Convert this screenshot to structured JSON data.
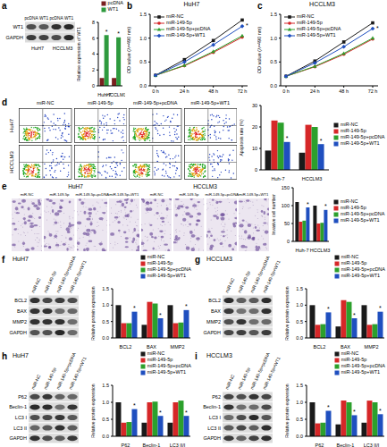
{
  "chart_data": [
    {
      "type": "bar",
      "categories": [
        "Huh-7",
        "HCCLM3"
      ],
      "ylabel": "Relative expression of WT1",
      "ylim": [
        0,
        8
      ],
      "yticks": [
        0,
        2,
        4,
        6,
        8
      ],
      "legend": "upper right",
      "annotation": "*",
      "series": [
        {
          "name": "pcDNA",
          "color": "#7a1f1f",
          "values": [
            1.0,
            1.0
          ]
        },
        {
          "name": "WT1",
          "color": "#2e9a3e",
          "values": [
            6.4,
            6.1
          ]
        }
      ]
    },
    {
      "type": "line",
      "panel": "b",
      "title": "HuH7",
      "categories": [
        "0 h",
        "24 h",
        "48 h",
        "72 h"
      ],
      "ylabel": "OD value (λ=490 nm)",
      "ylim": [
        0,
        1.5
      ],
      "yticks": [
        {
          "value": 0,
          "label": "0.0"
        },
        0.5,
        {
          "value": 1,
          "label": "1.0"
        },
        1.5
      ],
      "legend": "upper left",
      "annotation": "*",
      "series": [
        {
          "name": "miR-NC",
          "color": "#1a1a1a",
          "marker": "square",
          "values": [
            0.22,
            0.55,
            0.95,
            1.38
          ]
        },
        {
          "name": "miR-149-5p",
          "color": "#d62728",
          "marker": "circle",
          "values": [
            0.22,
            0.42,
            0.7,
            1.02
          ]
        },
        {
          "name": "miR-149-5p+pcDNA",
          "color": "#2ca02c",
          "marker": "triangle",
          "values": [
            0.22,
            0.43,
            0.72,
            1.05
          ]
        },
        {
          "name": "miR-149-5p+WT1",
          "color": "#1f4fbf",
          "marker": "diamond",
          "values": [
            0.22,
            0.5,
            0.86,
            1.25
          ]
        }
      ]
    },
    {
      "type": "line",
      "panel": "c",
      "title": "HCCLM3",
      "categories": [
        "0 h",
        "24 h",
        "48 h",
        "72 h"
      ],
      "ylabel": "OD value (λ=490 nm)",
      "ylim": [
        0,
        1.5
      ],
      "yticks": [
        {
          "value": 0,
          "label": "0.0"
        },
        0.5,
        {
          "value": 1,
          "label": "1.0"
        },
        1.5
      ],
      "legend": "upper left",
      "annotation": "*",
      "series": [
        {
          "name": "miR-NC",
          "color": "#1a1a1a",
          "marker": "square",
          "values": [
            0.2,
            0.52,
            0.92,
            1.32
          ]
        },
        {
          "name": "miR-149-5p",
          "color": "#d62728",
          "marker": "circle",
          "values": [
            0.2,
            0.4,
            0.66,
            0.98
          ]
        },
        {
          "name": "miR-149-5p+pcDNA",
          "color": "#2ca02c",
          "marker": "triangle",
          "values": [
            0.2,
            0.41,
            0.68,
            1.0
          ]
        },
        {
          "name": "miR-149-5p+WT1",
          "color": "#1f4fbf",
          "marker": "diamond",
          "values": [
            0.2,
            0.48,
            0.82,
            1.2
          ]
        }
      ]
    },
    {
      "type": "bar",
      "categories": [
        "Huh-7",
        "HCCLM3"
      ],
      "ylabel": "Apoptosis rate (%)",
      "ylim": [
        0,
        30
      ],
      "yticks": [
        0,
        10,
        20,
        30
      ],
      "legend": "right",
      "annotation": "*",
      "series": [
        {
          "name": "miR-NC",
          "color": "#1a1a1a",
          "values": [
            9,
            8
          ]
        },
        {
          "name": "miR-149-5p",
          "color": "#d62728",
          "values": [
            23,
            21
          ]
        },
        {
          "name": "miR-149-5p+pcDNA",
          "color": "#2ca02c",
          "values": [
            22,
            20
          ]
        },
        {
          "name": "miR-149-5p+WT1",
          "color": "#1f4fbf",
          "values": [
            13,
            12
          ]
        }
      ]
    },
    {
      "type": "bar",
      "categories": [
        "Huh-7",
        "HCCLM3"
      ],
      "ylabel": "Invasive cell number",
      "ylim": [
        0,
        150
      ],
      "yticks": [
        0,
        50,
        100,
        150
      ],
      "legend": "right",
      "annotation": "*",
      "series": [
        {
          "name": "miR-NC",
          "color": "#1a1a1a",
          "values": [
            110,
            100
          ]
        },
        {
          "name": "miR-149-5p",
          "color": "#d62728",
          "values": [
            55,
            50
          ]
        },
        {
          "name": "miR-149-5p+pcDNA",
          "color": "#2ca02c",
          "values": [
            58,
            52
          ]
        },
        {
          "name": "miR-149-5p+WT1",
          "color": "#1f4fbf",
          "values": [
            95,
            88
          ]
        }
      ]
    },
    {
      "type": "bar",
      "categories": [
        "BCL2",
        "BAX",
        "MMP2"
      ],
      "ylabel": "Relative protein expression",
      "ylim": [
        0,
        1.5
      ],
      "yticks": [
        {
          "value": 0,
          "label": "0.0"
        },
        0.5,
        {
          "value": 1,
          "label": "1.0"
        },
        1.5
      ],
      "legend": "upper right",
      "annotation": "*",
      "series": [
        {
          "name": "miR-NC",
          "color": "#1a1a1a",
          "values": [
            1.0,
            0.4,
            1.0
          ]
        },
        {
          "name": "miR-149-5p",
          "color": "#d62728",
          "values": [
            0.45,
            1.1,
            0.45
          ]
        },
        {
          "name": "miR-149-5p+pcDNA",
          "color": "#2ca02c",
          "values": [
            0.45,
            1.05,
            0.47
          ]
        },
        {
          "name": "miR-149-5p+WT1",
          "color": "#1f4fbf",
          "values": [
            0.8,
            0.6,
            0.85
          ]
        }
      ]
    },
    {
      "type": "bar",
      "categories": [
        "BCL2",
        "BAX",
        "MMP2"
      ],
      "ylabel": "Relative protein expression",
      "ylim": [
        0,
        1.5
      ],
      "yticks": [
        {
          "value": 0,
          "label": "0.0"
        },
        0.5,
        {
          "value": 1,
          "label": "1.0"
        },
        1.5
      ],
      "legend": "upper right",
      "annotation": "*",
      "series": [
        {
          "name": "miR-NC",
          "color": "#1a1a1a",
          "values": [
            1.0,
            0.35,
            1.0
          ]
        },
        {
          "name": "miR-149-5p",
          "color": "#d62728",
          "values": [
            0.4,
            1.15,
            0.4
          ]
        },
        {
          "name": "miR-149-5p+pcDNA",
          "color": "#2ca02c",
          "values": [
            0.42,
            1.1,
            0.42
          ]
        },
        {
          "name": "miR-149-5p+WT1",
          "color": "#1f4fbf",
          "values": [
            0.78,
            0.6,
            0.8
          ]
        }
      ]
    },
    {
      "type": "bar",
      "categories": [
        "P62",
        "Beclin-1",
        "LC3 II/I"
      ],
      "ylabel": "Relative protein expression",
      "ylim": [
        0,
        1.5
      ],
      "yticks": [
        {
          "value": 0,
          "label": "0.0"
        },
        0.5,
        {
          "value": 1,
          "label": "1.0"
        },
        1.5
      ],
      "legend": "upper right",
      "annotation": "*",
      "series": [
        {
          "name": "miR-NC",
          "color": "#1a1a1a",
          "values": [
            1.0,
            0.4,
            0.4
          ]
        },
        {
          "name": "miR-149-5p",
          "color": "#d62728",
          "values": [
            0.4,
            1.0,
            1.0
          ]
        },
        {
          "name": "miR-149-5p+pcDNA",
          "color": "#2ca02c",
          "values": [
            0.42,
            1.02,
            1.05
          ]
        },
        {
          "name": "miR-149-5p+WT1",
          "color": "#1f4fbf",
          "values": [
            0.8,
            0.6,
            0.6
          ]
        }
      ]
    },
    {
      "type": "bar",
      "categories": [
        "P62",
        "Beclin-1",
        "LC3 II/I"
      ],
      "ylabel": "Relative protein expression",
      "ylim": [
        0,
        1.5
      ],
      "yticks": [
        {
          "value": 0,
          "label": "0.0"
        },
        0.5,
        {
          "value": 1,
          "label": "1.0"
        },
        1.5
      ],
      "legend": "upper right",
      "annotation": "*",
      "series": [
        {
          "name": "miR-NC",
          "color": "#1a1a1a",
          "values": [
            1.0,
            0.35,
            0.4
          ]
        },
        {
          "name": "miR-149-5p",
          "color": "#d62728",
          "values": [
            0.38,
            1.05,
            1.05
          ]
        },
        {
          "name": "miR-149-5p+pcDNA",
          "color": "#2ca02c",
          "values": [
            0.4,
            1.0,
            1.0
          ]
        },
        {
          "name": "miR-149-5p+WT1",
          "color": "#1f4fbf",
          "values": [
            0.75,
            0.62,
            0.65
          ]
        }
      ]
    }
  ],
  "blots": [
    {
      "panel": "a",
      "groups": [
        "HuH7",
        "HCCLM3"
      ],
      "columns": [
        "pcDNA",
        "WT1"
      ],
      "rows": [
        "WT1",
        "GAPDH"
      ]
    },
    {
      "panel": "f",
      "title": "HuH7",
      "columns": [
        "miR-NC",
        "miR-149-5p",
        "miR-149-5p+pcDNA",
        "miR-149-5p+WT1"
      ],
      "rows": [
        "BCL2",
        "BAX",
        "MMP2",
        "GAPDH"
      ]
    },
    {
      "panel": "g",
      "title": "HCCLM3",
      "columns": [
        "miR-NC",
        "miR-149-5p",
        "miR-149-5p+pcDNA",
        "miR-149-5p+WT1"
      ],
      "rows": [
        "BCL2",
        "BAX",
        "MMP2",
        "GAPDH"
      ]
    },
    {
      "panel": "h",
      "title": "HuH7",
      "columns": [
        "miR-NC",
        "miR-149-5p",
        "miR-149-5p+pcDNA",
        "miR-149-5p+WT1"
      ],
      "rows": [
        "P62",
        "Beclin-1",
        "LC3 I",
        "LC3 II",
        "GAPDH"
      ]
    },
    {
      "panel": "i",
      "title": "HCCLM3",
      "columns": [
        "miR-NC",
        "miR-149-5p",
        "miR-149-5p+pcDNA",
        "miR-149-5p+WT1"
      ],
      "rows": [
        "P62",
        "Beclin-1",
        "LC3 I",
        "LC3 II",
        "GAPDH"
      ]
    }
  ],
  "flow": {
    "panel": "d",
    "rows": [
      "HuH7",
      "HCCLM3"
    ],
    "columns": [
      "miR-NC",
      "miR-149-5p",
      "miR-149-5p+pcDNA",
      "miR-149-5p+WT1"
    ]
  },
  "transwell": {
    "panel": "e",
    "groups": [
      "HuH7",
      "HCCLM3"
    ],
    "columns": [
      "miR-NC",
      "miR-149-5p",
      "miR-149-5p+pcDNA",
      "miR-149-5p+WT1"
    ]
  }
}
